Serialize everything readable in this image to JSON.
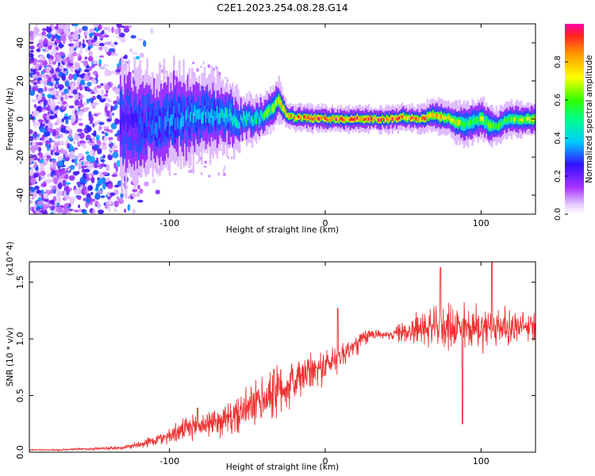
{
  "title": "C2E1.2023.254.08.28.G14",
  "chart_data": [
    {
      "type": "heatmap",
      "title": "",
      "xlabel": "Height of straight line (km)",
      "ylabel": "Frequency (Hz)",
      "xlim": [
        -190,
        135
      ],
      "ylim": [
        -50,
        50
      ],
      "xticks": [
        -100,
        0,
        100
      ],
      "yticks": [
        -40,
        -20,
        0,
        20,
        40
      ],
      "xtick_labels": [
        "-100",
        "0",
        "100"
      ],
      "ytick_labels": [
        "-40",
        "-20",
        "0",
        "20",
        "40"
      ],
      "colorbar": {
        "label": "Normalized spectral amplitude",
        "range": [
          0.0,
          1.0
        ],
        "ticks": [
          0.0,
          0.2,
          0.4,
          0.6,
          0.8
        ],
        "tick_labels": [
          "0.0",
          "0.2",
          "0.4",
          "0.6",
          "0.8"
        ]
      },
      "trace": {
        "x": [
          -130,
          -115,
          -100,
          -85,
          -70,
          -60,
          -55,
          -45,
          -40,
          -35,
          -30,
          -25,
          -20,
          0,
          20,
          40,
          50,
          60,
          70,
          80,
          85,
          90,
          95,
          100,
          105,
          110,
          115,
          120,
          135
        ],
        "center_hz": [
          -2,
          -3,
          0,
          1,
          2,
          0,
          -1,
          0,
          2,
          5,
          10,
          2,
          1,
          0,
          0,
          0,
          1,
          0,
          2,
          0,
          -2,
          -3,
          -1,
          0,
          -3,
          -4,
          -1,
          0,
          0
        ],
        "amplitude": [
          0.25,
          0.3,
          0.35,
          0.38,
          0.4,
          0.42,
          0.45,
          0.5,
          0.55,
          0.65,
          0.72,
          0.85,
          0.88,
          0.9,
          0.88,
          0.9,
          0.85,
          0.85,
          0.8,
          0.75,
          0.7,
          0.6,
          0.55,
          0.65,
          0.6,
          0.55,
          0.6,
          0.65,
          0.7
        ],
        "half_width_hz": [
          14,
          12,
          12,
          10,
          9,
          8,
          6,
          5,
          5,
          5,
          5,
          3,
          3,
          3,
          3,
          3,
          3,
          3,
          4,
          4,
          5,
          5,
          5,
          5,
          5,
          4,
          4,
          4,
          4
        ]
      }
    },
    {
      "type": "line",
      "title": "",
      "xlabel": "Height of straight line (km)",
      "ylabel": "SNR (10 * v/v)",
      "y_multiplier": "(x10^4)",
      "xlim": [
        -190,
        135
      ],
      "ylim": [
        0,
        16800
      ],
      "xticks": [
        -100,
        0,
        100
      ],
      "yticks": [
        0,
        5000,
        10000,
        15000
      ],
      "xtick_labels": [
        "-100",
        "0",
        "100"
      ],
      "ytick_labels": [
        "0.0",
        "0.5",
        "1.0",
        "1.5"
      ],
      "series": [
        {
          "name": "SNR",
          "color": "#ee3333",
          "x": [
            -190,
            -170,
            -150,
            -130,
            -120,
            -110,
            -100,
            -90,
            -80,
            -70,
            -60,
            -50,
            -40,
            -30,
            -20,
            -10,
            0,
            10,
            20,
            30,
            40,
            50,
            60,
            70,
            80,
            90,
            100,
            110,
            120,
            135
          ],
          "values": [
            200,
            200,
            300,
            400,
            700,
            1000,
            1500,
            2000,
            2400,
            2700,
            3000,
            3800,
            4600,
            5400,
            6200,
            7000,
            7600,
            8500,
            9500,
            10500,
            10300,
            10600,
            10900,
            11000,
            11100,
            11000,
            11000,
            11100,
            11000,
            11000
          ],
          "spread": [
            100,
            100,
            150,
            200,
            400,
            600,
            900,
            1200,
            1400,
            1500,
            1800,
            2200,
            2600,
            2800,
            2600,
            2000,
            1800,
            1600,
            1200,
            700,
            300,
            1200,
            1800,
            2000,
            2400,
            2600,
            2400,
            2200,
            1800,
            1500
          ],
          "peaks": [
            {
              "x": -82,
              "value": 3900
            },
            {
              "x": -33,
              "value": 7300
            },
            {
              "x": 8,
              "value": 12700
            },
            {
              "x": 74,
              "value": 16300
            },
            {
              "x": 88,
              "value": 2500
            },
            {
              "x": 107,
              "value": 16800
            }
          ]
        }
      ]
    }
  ]
}
